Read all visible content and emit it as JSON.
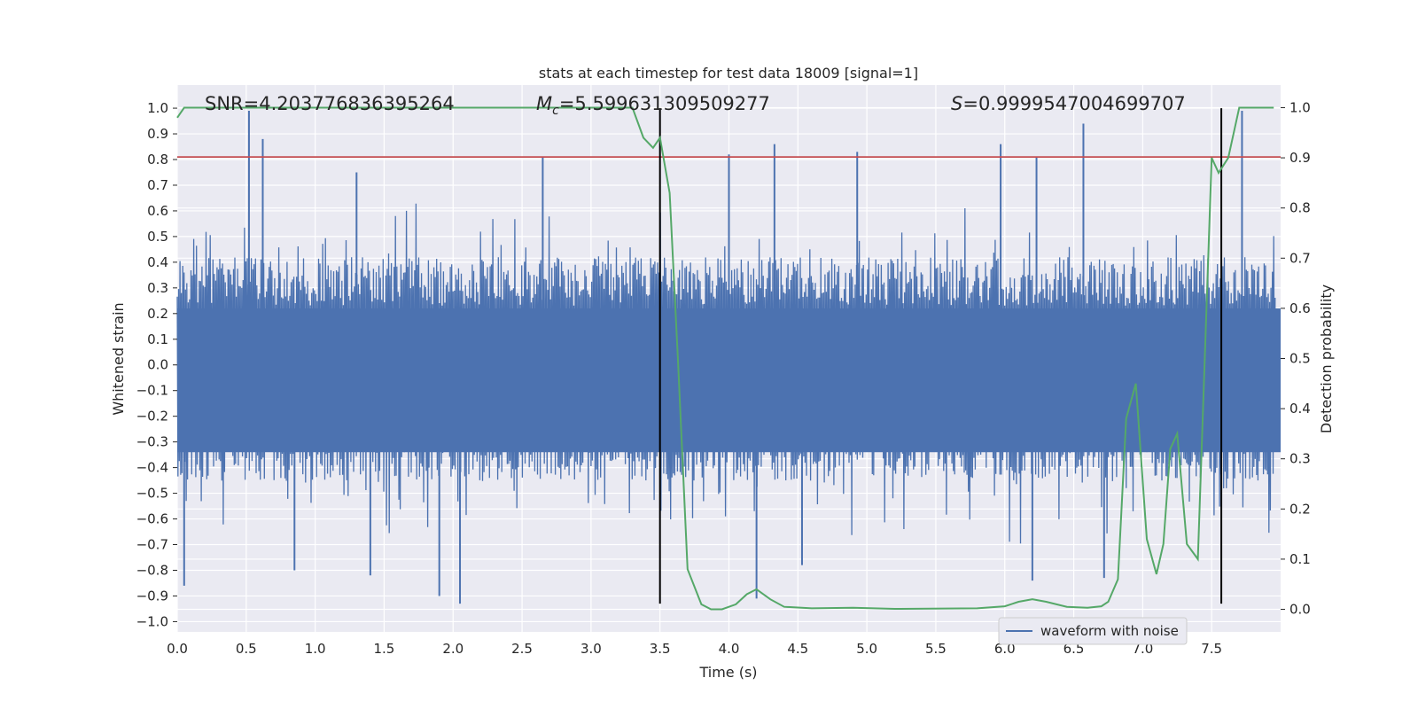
{
  "chart_data": {
    "type": "line",
    "title": "stats at each timestep for test data 18009 [signal=1]",
    "xlabel": "Time (s)",
    "ylabel": "Whitened strain",
    "y2label": "Detection probability",
    "xlim": [
      0.0,
      8.0
    ],
    "ylim": [
      -1.04,
      1.09
    ],
    "y2lim": [
      -0.045,
      1.045
    ],
    "xticks": [
      "0.0",
      "0.5",
      "1.0",
      "1.5",
      "2.0",
      "2.5",
      "3.0",
      "3.5",
      "4.0",
      "4.5",
      "5.0",
      "5.5",
      "6.0",
      "6.5",
      "7.0",
      "7.5"
    ],
    "yticks": [
      "1.0",
      "0.9",
      "0.8",
      "0.7",
      "0.6",
      "0.5",
      "0.4",
      "0.3",
      "0.2",
      "0.1",
      "0.0",
      "−0.1",
      "−0.2",
      "−0.3",
      "−0.4",
      "−0.5",
      "−0.6",
      "−0.7",
      "−0.8",
      "−0.9",
      "−1.0"
    ],
    "y2ticks": [
      "1.0",
      "0.9",
      "0.8",
      "0.7",
      "0.6",
      "0.5",
      "0.4",
      "0.3",
      "0.2",
      "0.1",
      "0.0"
    ],
    "grid": true,
    "legend_position": "lower-right",
    "annotations": {
      "snr": "SNR=4.203776836395264",
      "mc_symbol": "M",
      "mc_sub": "c",
      "mc_value": "=5.599631309509277",
      "s_symbol": "S",
      "s_value": "=0.9999547004699707"
    },
    "threshold_line": {
      "y": 0.81,
      "color": "#c44e52"
    },
    "vertical_markers": [
      {
        "x": 3.5,
        "y_range": [
          -0.93,
          1.0
        ]
      },
      {
        "x": 7.57,
        "y_range": [
          -0.93,
          1.0
        ]
      }
    ],
    "series": [
      {
        "name": "waveform with noise",
        "axis": "left",
        "color": "#4c72b0",
        "style": "dense noise",
        "typical_envelope": [
          -0.45,
          0.42
        ],
        "peaks": [
          {
            "x": 0.52,
            "y": 0.99
          },
          {
            "x": 0.62,
            "y": 0.88
          },
          {
            "x": 1.3,
            "y": 0.75
          },
          {
            "x": 2.65,
            "y": 0.81
          },
          {
            "x": 4.0,
            "y": 0.82
          },
          {
            "x": 4.33,
            "y": 0.86
          },
          {
            "x": 4.93,
            "y": 0.83
          },
          {
            "x": 5.97,
            "y": 0.86
          },
          {
            "x": 6.23,
            "y": 0.81
          },
          {
            "x": 6.57,
            "y": 0.94
          },
          {
            "x": 7.72,
            "y": 0.99
          }
        ],
        "troughs": [
          {
            "x": 0.05,
            "y": -0.86
          },
          {
            "x": 0.85,
            "y": -0.8
          },
          {
            "x": 1.4,
            "y": -0.82
          },
          {
            "x": 1.9,
            "y": -0.9
          },
          {
            "x": 2.05,
            "y": -0.93
          },
          {
            "x": 4.2,
            "y": -0.91
          },
          {
            "x": 4.53,
            "y": -0.78
          },
          {
            "x": 6.2,
            "y": -0.84
          },
          {
            "x": 6.72,
            "y": -0.83
          }
        ]
      },
      {
        "name": "Detection probability",
        "axis": "right",
        "color": "#55a868",
        "x": [
          0.0,
          0.05,
          0.5,
          1.0,
          1.5,
          2.0,
          2.5,
          3.0,
          3.3,
          3.38,
          3.45,
          3.5,
          3.57,
          3.63,
          3.7,
          3.8,
          3.87,
          3.95,
          4.05,
          4.13,
          4.2,
          4.3,
          4.4,
          4.6,
          4.9,
          5.2,
          5.8,
          6.0,
          6.1,
          6.2,
          6.3,
          6.45,
          6.6,
          6.7,
          6.75,
          6.82,
          6.88,
          6.95,
          7.03,
          7.1,
          7.15,
          7.2,
          7.25,
          7.32,
          7.4,
          7.45,
          7.5,
          7.55,
          7.62,
          7.7,
          7.95
        ],
        "values": [
          0.98,
          1.0,
          1.0,
          1.0,
          1.0,
          1.0,
          1.0,
          1.0,
          1.0,
          0.94,
          0.92,
          0.94,
          0.83,
          0.5,
          0.08,
          0.01,
          0.0,
          0.0,
          0.01,
          0.03,
          0.04,
          0.02,
          0.005,
          0.002,
          0.003,
          0.001,
          0.002,
          0.006,
          0.015,
          0.02,
          0.015,
          0.005,
          0.003,
          0.006,
          0.015,
          0.06,
          0.38,
          0.45,
          0.14,
          0.07,
          0.13,
          0.32,
          0.35,
          0.13,
          0.1,
          0.5,
          0.9,
          0.87,
          0.9,
          1.0,
          1.0
        ]
      }
    ]
  },
  "legend": {
    "label": "waveform with noise"
  },
  "colors": {
    "plot_background": "#eaeaf2",
    "grid": "#ffffff",
    "waveform": "#4c72b0",
    "probability": "#55a868",
    "threshold": "#c44e52",
    "marker": "#000000"
  }
}
